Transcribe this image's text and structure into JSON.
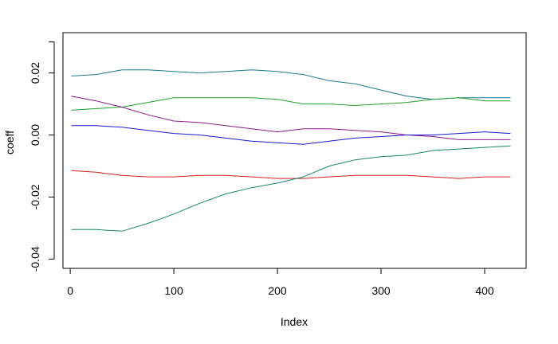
{
  "chart_data": {
    "type": "line",
    "title": "",
    "xlabel": "Index",
    "ylabel": "coeff",
    "xlim": [
      -7,
      440
    ],
    "ylim": [
      -0.043,
      0.033
    ],
    "x_ticks": [
      0,
      100,
      200,
      300,
      400
    ],
    "x_tick_labels": [
      "0",
      "100",
      "200",
      "300",
      "400"
    ],
    "y_ticks": [
      -0.04,
      -0.02,
      0.0,
      0.02
    ],
    "y_tick_labels": [
      "-0.04",
      "-0.02",
      "0.00",
      "0.02"
    ],
    "grid": false,
    "x": [
      1,
      25,
      50,
      75,
      100,
      125,
      150,
      175,
      200,
      225,
      250,
      275,
      300,
      325,
      350,
      375,
      400,
      425
    ],
    "series": [
      {
        "color": "#1c7a8c",
        "values": [
          0.019,
          0.0195,
          0.021,
          0.021,
          0.0205,
          0.02,
          0.0205,
          0.021,
          0.0205,
          0.0195,
          0.0175,
          0.0165,
          0.0145,
          0.0125,
          0.0115,
          0.012,
          0.012,
          0.012
        ]
      },
      {
        "color": "#22a02c",
        "values": [
          0.008,
          0.0085,
          0.009,
          0.0105,
          0.012,
          0.012,
          0.012,
          0.012,
          0.0115,
          0.01,
          0.01,
          0.0095,
          0.01,
          0.0105,
          0.0115,
          0.012,
          0.011,
          0.011
        ]
      },
      {
        "color": "#8b1a8b",
        "values": [
          0.0125,
          0.011,
          0.009,
          0.0065,
          0.0045,
          0.004,
          0.003,
          0.002,
          0.001,
          0.002,
          0.002,
          0.0015,
          0.001,
          0.0,
          -0.0005,
          -0.0015,
          -0.0015,
          -0.0015
        ]
      },
      {
        "color": "#1a1ad4",
        "values": [
          0.003,
          0.003,
          0.0025,
          0.0015,
          0.0005,
          0.0,
          -0.001,
          -0.002,
          -0.0025,
          -0.003,
          -0.002,
          -0.001,
          -0.0005,
          0.0,
          0.0,
          0.0005,
          0.001,
          0.0005
        ]
      },
      {
        "color": "#d42020",
        "values": [
          -0.0115,
          -0.012,
          -0.013,
          -0.0135,
          -0.0135,
          -0.013,
          -0.013,
          -0.0135,
          -0.014,
          -0.014,
          -0.0135,
          -0.013,
          -0.013,
          -0.013,
          -0.0135,
          -0.014,
          -0.0135,
          -0.0135
        ]
      },
      {
        "color": "#18866a",
        "values": [
          -0.0305,
          -0.0305,
          -0.031,
          -0.0285,
          -0.0255,
          -0.022,
          -0.019,
          -0.017,
          -0.0155,
          -0.0135,
          -0.01,
          -0.008,
          -0.007,
          -0.0065,
          -0.005,
          -0.0045,
          -0.004,
          -0.0035
        ]
      }
    ]
  }
}
